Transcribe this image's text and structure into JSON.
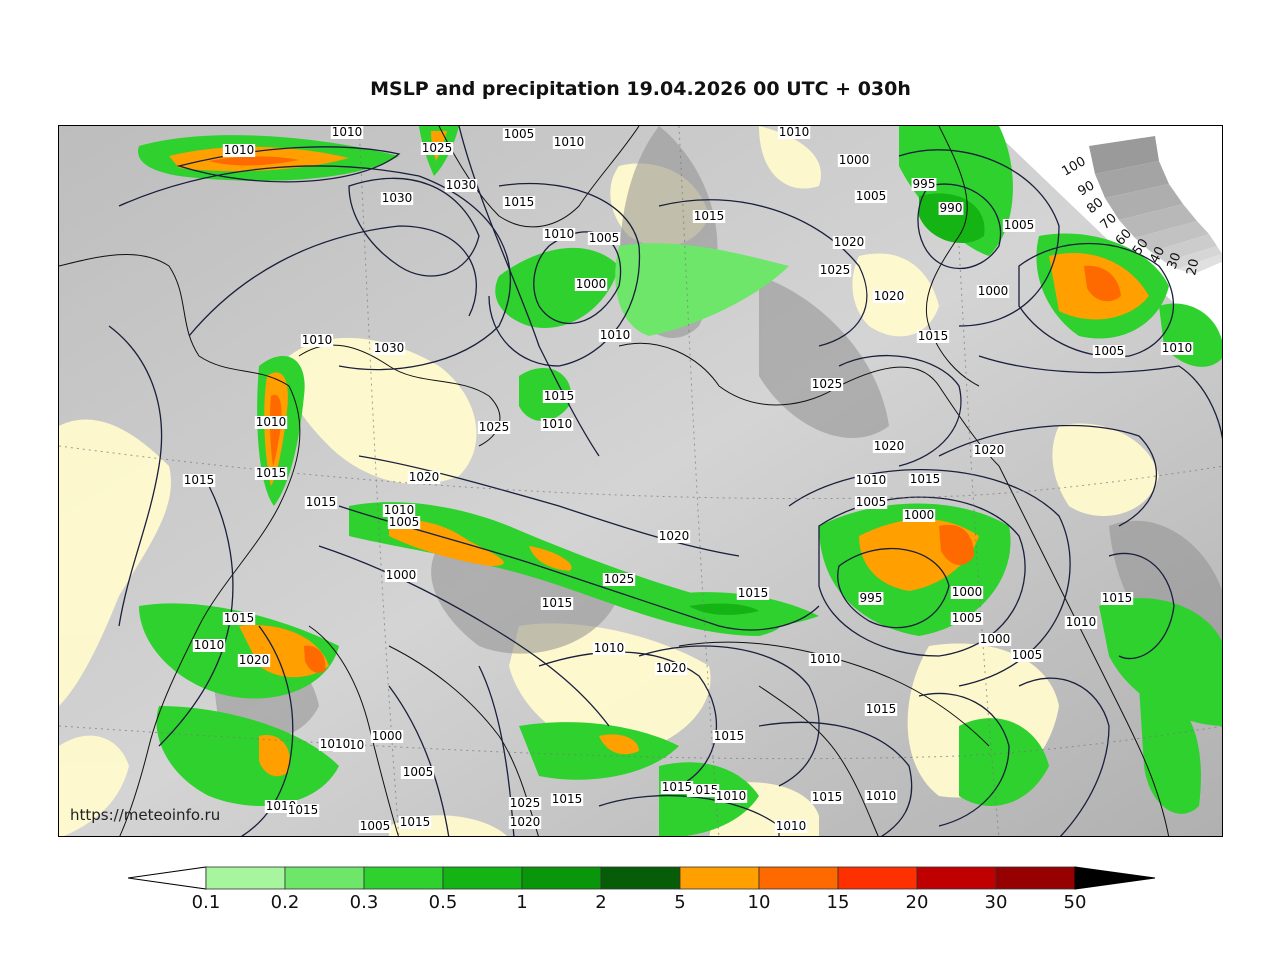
{
  "title": "MSLP and precipitation 19.04.2026 00 UTC + 030h",
  "watermark": "https://meteoinfo.ru",
  "colors": {
    "precip": [
      "#a8f5a0",
      "#6ee66a",
      "#2ed12e",
      "#14b414",
      "#0a960a",
      "#075d07",
      "#ff9f00",
      "#ff6a00",
      "#ff3000",
      "#c00000",
      "#960000",
      "#000000"
    ],
    "cloud_base": "#c8c8c8",
    "clear": "#fffacd"
  },
  "colorbar": {
    "labels": [
      "0.1",
      "0.2",
      "0.3",
      "0.5",
      "1",
      "2",
      "5",
      "10",
      "15",
      "20",
      "30",
      "50"
    ]
  },
  "cloud_legend": {
    "labels": [
      "100",
      "90",
      "80",
      "70",
      "60",
      "50",
      "40",
      "30",
      "20"
    ]
  },
  "isobar_labels": [
    {
      "text": "1010"
    },
    {
      "text": "1010"
    },
    {
      "text": "1025"
    },
    {
      "text": "1005"
    },
    {
      "text": "1010"
    },
    {
      "text": "1010"
    },
    {
      "text": "1010"
    },
    {
      "text": "1030"
    },
    {
      "text": "1030"
    },
    {
      "text": "1015"
    },
    {
      "text": "1010"
    },
    {
      "text": "1005"
    },
    {
      "text": "1000"
    },
    {
      "text": "1010"
    },
    {
      "text": "1015"
    },
    {
      "text": "1020"
    },
    {
      "text": "1025"
    },
    {
      "text": "1020"
    },
    {
      "text": "1000"
    },
    {
      "text": "1005"
    },
    {
      "text": "995"
    },
    {
      "text": "990"
    },
    {
      "text": "1005"
    },
    {
      "text": "1000"
    },
    {
      "text": "1015"
    },
    {
      "text": "1005"
    },
    {
      "text": "1010"
    },
    {
      "text": "1025"
    },
    {
      "text": "1030"
    },
    {
      "text": "1015"
    },
    {
      "text": "1010"
    },
    {
      "text": "1010"
    },
    {
      "text": "1015"
    },
    {
      "text": "1015"
    },
    {
      "text": "1020"
    },
    {
      "text": "1025"
    },
    {
      "text": "1020"
    },
    {
      "text": "1015"
    },
    {
      "text": "1010"
    },
    {
      "text": "1005"
    },
    {
      "text": "1000"
    },
    {
      "text": "1020"
    },
    {
      "text": "1025"
    },
    {
      "text": "1015"
    },
    {
      "text": "1015"
    },
    {
      "text": "1020"
    },
    {
      "text": "1010"
    },
    {
      "text": "1015"
    },
    {
      "text": "1005"
    },
    {
      "text": "1000"
    },
    {
      "text": "995"
    },
    {
      "text": "1000"
    },
    {
      "text": "1005"
    },
    {
      "text": "1000"
    },
    {
      "text": "1005"
    },
    {
      "text": "1010"
    },
    {
      "text": "1015"
    },
    {
      "text": "1010"
    },
    {
      "text": "1010"
    },
    {
      "text": "1020"
    },
    {
      "text": "1015"
    },
    {
      "text": "1015"
    },
    {
      "text": "1015"
    },
    {
      "text": "1010"
    },
    {
      "text": "1010"
    },
    {
      "text": "1015"
    },
    {
      "text": "1010"
    },
    {
      "text": "1005"
    },
    {
      "text": "1005"
    },
    {
      "text": "1010"
    },
    {
      "text": "1025"
    },
    {
      "text": "1020"
    },
    {
      "text": "1015"
    },
    {
      "text": "1015"
    },
    {
      "text": "1005"
    },
    {
      "text": "1010"
    },
    {
      "text": "1000"
    },
    {
      "text": "1015"
    },
    {
      "text": "1010"
    },
    {
      "text": "1015"
    },
    {
      "text": "1010"
    },
    {
      "text": "1015"
    },
    {
      "text": "1020"
    }
  ]
}
